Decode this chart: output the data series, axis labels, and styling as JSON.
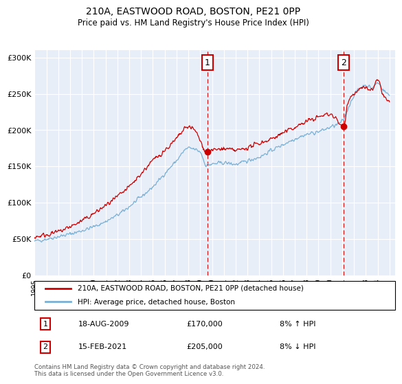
{
  "title": "210A, EASTWOOD ROAD, BOSTON, PE21 0PP",
  "subtitle": "Price paid vs. HM Land Registry's House Price Index (HPI)",
  "ylabel_ticks": [
    "£0",
    "£50K",
    "£100K",
    "£150K",
    "£200K",
    "£250K",
    "£300K"
  ],
  "ytick_values": [
    0,
    50000,
    100000,
    150000,
    200000,
    250000,
    300000
  ],
  "ylim": [
    0,
    310000
  ],
  "xlim_start": 1995.0,
  "xlim_end": 2025.5,
  "hpi_color": "#7ab0d4",
  "price_color": "#cc0000",
  "bg_plot": "#e8eef8",
  "marker1_x": 2009.62,
  "marker1_y": 170000,
  "marker2_x": 2021.12,
  "marker2_y": 205000,
  "legend_line1": "210A, EASTWOOD ROAD, BOSTON, PE21 0PP (detached house)",
  "legend_line2": "HPI: Average price, detached house, Boston",
  "marker1_label": "1",
  "marker1_date": "18-AUG-2009",
  "marker1_price_str": "£170,000",
  "marker1_hpi_pct": "8% ↑ HPI",
  "marker2_label": "2",
  "marker2_date": "15-FEB-2021",
  "marker2_price_str": "£205,000",
  "marker2_hpi_pct": "8% ↓ HPI",
  "footnote": "Contains HM Land Registry data © Crown copyright and database right 2024.\nThis data is licensed under the Open Government Licence v3.0.",
  "xtick_years": [
    1995,
    1996,
    1997,
    1998,
    1999,
    2000,
    2001,
    2002,
    2003,
    2004,
    2005,
    2006,
    2007,
    2008,
    2009,
    2010,
    2011,
    2012,
    2013,
    2014,
    2015,
    2016,
    2017,
    2018,
    2019,
    2020,
    2021,
    2022,
    2023,
    2024,
    2025
  ],
  "hpi_key_x": [
    1995,
    1996,
    1998,
    2000,
    2002,
    2004,
    2005,
    2006,
    2007,
    2008,
    2009.0,
    2009.5,
    2010,
    2011,
    2012,
    2013,
    2014,
    2015,
    2016,
    2017,
    2018,
    2019,
    2020,
    2021,
    2021.5,
    2022,
    2022.5,
    2023,
    2023.5,
    2024,
    2024.5,
    2025
  ],
  "hpi_key_y": [
    47000,
    50000,
    57000,
    67000,
    83000,
    108000,
    122000,
    140000,
    158000,
    175000,
    170000,
    152000,
    153000,
    155000,
    153000,
    158000,
    163000,
    172000,
    180000,
    188000,
    194000,
    198000,
    204000,
    212000,
    230000,
    248000,
    258000,
    262000,
    258000,
    265000,
    255000,
    248000
  ],
  "price_key_x": [
    1995,
    1996,
    1997,
    1998,
    1999,
    2000,
    2001,
    2002,
    2003,
    2004,
    2005,
    2006,
    2007,
    2007.5,
    2008,
    2008.5,
    2009.62,
    2010,
    2011,
    2012,
    2013,
    2014,
    2015,
    2016,
    2017,
    2018,
    2019,
    2020,
    2021.12,
    2021.5,
    2022,
    2022.5,
    2023,
    2023.5,
    2024,
    2024.5,
    2025
  ],
  "price_key_y": [
    53000,
    56000,
    60000,
    67000,
    75000,
    85000,
    96000,
    108000,
    122000,
    140000,
    158000,
    172000,
    188000,
    198000,
    205000,
    200000,
    170000,
    172000,
    174000,
    172000,
    176000,
    182000,
    188000,
    196000,
    204000,
    212000,
    218000,
    222000,
    205000,
    240000,
    250000,
    256000,
    258000,
    255000,
    268000,
    248000,
    238000
  ]
}
